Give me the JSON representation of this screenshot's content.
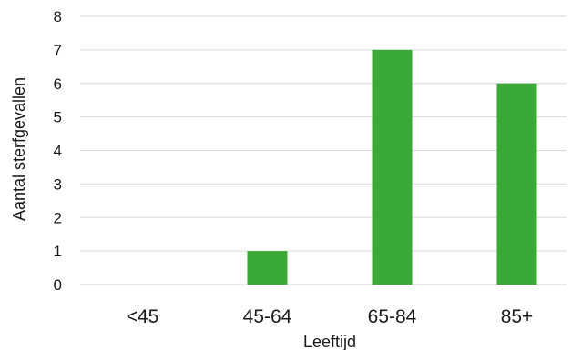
{
  "chart_data": {
    "type": "bar",
    "title": "",
    "xlabel": "Leeftijd",
    "ylabel": "Aantal sterfgevallen",
    "categories": [
      "<45",
      "45-64",
      "65-84",
      "85+"
    ],
    "values": [
      0,
      1,
      7,
      6
    ],
    "ylim": [
      0,
      8
    ],
    "yticks": [
      "0",
      "1",
      "2",
      "3",
      "4",
      "5",
      "6",
      "7",
      "8"
    ],
    "grid": true,
    "legend": "none",
    "bar_color": "#3aa935"
  }
}
